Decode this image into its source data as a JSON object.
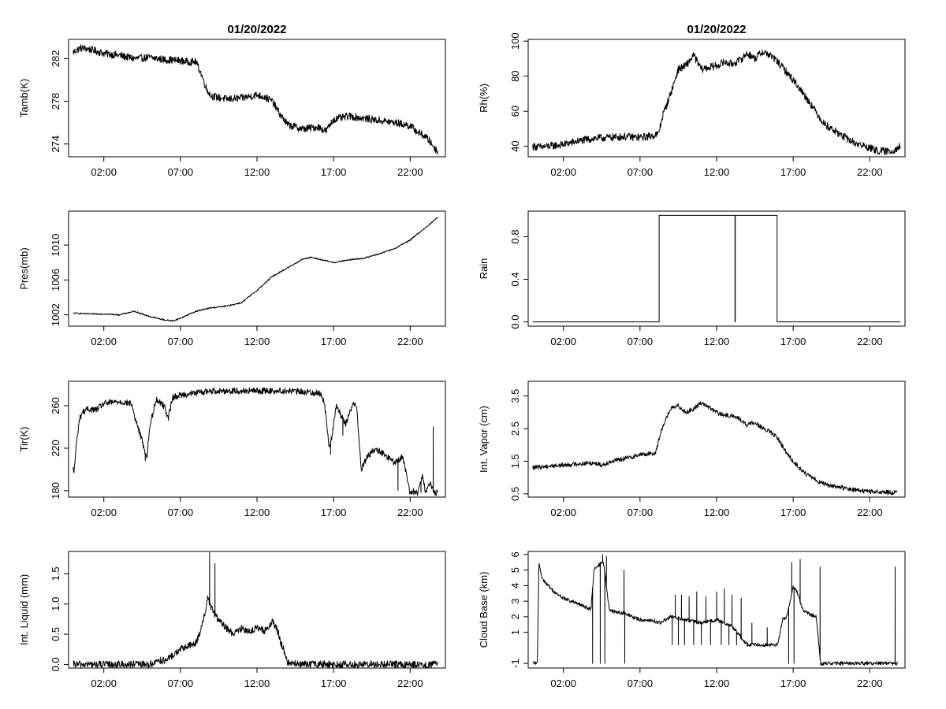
{
  "chart_data": [
    {
      "id": "tamb",
      "type": "line",
      "title": "01/20/2022",
      "xlabel": "",
      "ylabel": "Tamb(K)",
      "xlim": [
        -0.3,
        24.3
      ],
      "ylim": [
        272.8,
        283.8
      ],
      "yticks": [
        "274",
        "278",
        "282"
      ],
      "ytick_values": [
        274,
        278,
        282
      ],
      "xticks": [
        "02:00",
        "07:00",
        "12:00",
        "17:00",
        "22:00"
      ],
      "xtick_values": [
        2,
        7,
        12,
        17,
        22
      ],
      "x": [
        0,
        0.5,
        1,
        1.5,
        2,
        3,
        4,
        5,
        6,
        7,
        7.5,
        8,
        8.3,
        8.7,
        9,
        10,
        11,
        12,
        12.5,
        13,
        13.5,
        14,
        15,
        16,
        16.5,
        17,
        18,
        19,
        20,
        21,
        22,
        22.5,
        23,
        23.3,
        23.6,
        23.8
      ],
      "y": [
        282.6,
        283.0,
        282.9,
        282.7,
        282.5,
        282.3,
        282.0,
        282.1,
        281.9,
        281.8,
        281.7,
        281.7,
        280.8,
        279.2,
        278.5,
        278.2,
        278.3,
        278.6,
        278.4,
        278.0,
        276.8,
        275.8,
        275.4,
        275.6,
        275.2,
        276.3,
        276.6,
        276.4,
        276.2,
        276.0,
        275.7,
        275.1,
        274.7,
        274.2,
        273.6,
        273.3
      ],
      "noise": 0.35
    },
    {
      "id": "rh",
      "type": "line",
      "title": "01/20/2022",
      "xlabel": "",
      "ylabel": "Rh(%)",
      "xlim": [
        -0.3,
        24.3
      ],
      "ylim": [
        34,
        101
      ],
      "yticks": [
        "40",
        "60",
        "80",
        "100"
      ],
      "ytick_values": [
        40,
        60,
        80,
        100
      ],
      "xticks": [
        "02:00",
        "07:00",
        "12:00",
        "17:00",
        "22:00"
      ],
      "xtick_values": [
        2,
        7,
        12,
        17,
        22
      ],
      "x": [
        0,
        0.5,
        1,
        1.5,
        2,
        3,
        4,
        5,
        6,
        7,
        7.8,
        8.2,
        8.5,
        9,
        9.5,
        10,
        10.5,
        11,
        12,
        12.5,
        13,
        13.5,
        14,
        14.5,
        15,
        15.5,
        16,
        16.5,
        17,
        18,
        19,
        20,
        21,
        22,
        22.5,
        23,
        23.5,
        24
      ],
      "y": [
        40,
        39.5,
        40,
        40.5,
        41,
        43,
        44.5,
        45,
        45.5,
        45,
        46,
        47,
        58,
        70,
        84,
        86,
        92,
        84,
        86,
        88,
        87,
        89,
        93,
        90,
        94,
        92,
        88,
        83,
        78,
        66,
        53,
        47,
        42,
        39,
        37.5,
        37,
        37.5,
        40
      ],
      "noise": 2.2
    },
    {
      "id": "pres",
      "type": "line",
      "title": "",
      "xlabel": "",
      "ylabel": "Pres(mb)",
      "xlim": [
        -0.3,
        24.3
      ],
      "ylim": [
        1000.7,
        1013.9
      ],
      "yticks": [
        "1002",
        "1006",
        "1010"
      ],
      "ytick_values": [
        1002,
        1006,
        1010
      ],
      "xticks": [
        "02:00",
        "07:00",
        "12:00",
        "17:00",
        "22:00"
      ],
      "xtick_values": [
        2,
        7,
        12,
        17,
        22
      ],
      "x": [
        0,
        1,
        2,
        3,
        4,
        5,
        6,
        6.5,
        7,
        8,
        9,
        10,
        11,
        12,
        13,
        14,
        15,
        15.5,
        16,
        17,
        18,
        19,
        20,
        21,
        22,
        23,
        23.8
      ],
      "y": [
        1002.2,
        1002.1,
        1002.1,
        1002.0,
        1002.4,
        1001.8,
        1001.4,
        1001.3,
        1001.6,
        1002.4,
        1002.8,
        1003.0,
        1003.4,
        1004.8,
        1006.4,
        1007.4,
        1008.4,
        1008.6,
        1008.4,
        1008.0,
        1008.3,
        1008.5,
        1009.0,
        1009.6,
        1010.6,
        1012.0,
        1013.2
      ],
      "noise": 0.08
    },
    {
      "id": "rain",
      "type": "line",
      "title": "",
      "xlabel": "",
      "ylabel": "Rain",
      "xlim": [
        -0.3,
        24.3
      ],
      "ylim": [
        -0.04,
        1.04
      ],
      "yticks": [
        "0.0",
        "0.4",
        "0.8"
      ],
      "ytick_values": [
        0,
        0.4,
        0.8
      ],
      "xticks": [
        "02:00",
        "07:00",
        "12:00",
        "17:00",
        "22:00"
      ],
      "xtick_values": [
        2,
        7,
        12,
        17,
        22
      ],
      "x": [
        0,
        8.25,
        8.25,
        13.2,
        13.2,
        13.22,
        13.22,
        15.95,
        15.95,
        24
      ],
      "y": [
        0,
        0,
        1,
        1,
        0,
        0,
        1,
        1,
        0,
        0
      ],
      "noise": 0
    },
    {
      "id": "tir",
      "type": "line",
      "title": "",
      "xlabel": "",
      "ylabel": "Tir(K)",
      "xlim": [
        -0.3,
        24.3
      ],
      "ylim": [
        174,
        283
      ],
      "yticks": [
        "180",
        "220",
        "260"
      ],
      "ytick_values": [
        180,
        220,
        260
      ],
      "xticks": [
        "02:00",
        "07:00",
        "12:00",
        "17:00",
        "22:00"
      ],
      "xtick_values": [
        2,
        7,
        12,
        17,
        22
      ],
      "x": [
        0,
        0.05,
        0.2,
        0.4,
        0.6,
        1,
        1.5,
        2,
        3,
        3.8,
        4.1,
        4.4,
        4.6,
        4.8,
        5,
        5.4,
        5.8,
        6,
        6.2,
        6.5,
        7,
        8,
        9,
        10,
        11,
        12,
        13,
        14,
        15,
        16,
        16.3,
        16.5,
        16.7,
        16.9,
        17.2,
        17.5,
        17.8,
        18.2,
        18.5,
        18.8,
        19.2,
        19.6,
        20,
        20.5,
        21,
        21.5,
        22,
        22.2,
        22.5,
        22.8,
        23,
        23.3,
        23.6,
        23.8
      ],
      "y": [
        200,
        197,
        222,
        247,
        254,
        257,
        256,
        262,
        264,
        262,
        245,
        232,
        222,
        210,
        240,
        266,
        262,
        258,
        248,
        268,
        270,
        272,
        274,
        274,
        274,
        274,
        274,
        274,
        273,
        272,
        268,
        252,
        222,
        232,
        262,
        250,
        243,
        260,
        262,
        200,
        212,
        218,
        217,
        212,
        206,
        212,
        178,
        179,
        178,
        196,
        178,
        186,
        178,
        178
      ],
      "noise": 3,
      "spikes": [
        [
          4.7,
          208
        ],
        [
          16.8,
          214
        ],
        [
          17.6,
          232
        ],
        [
          21.2,
          180
        ],
        [
          22.7,
          178
        ],
        [
          23.5,
          240
        ]
      ]
    },
    {
      "id": "vapor",
      "type": "line",
      "title": "",
      "xlabel": "",
      "ylabel": "Int. Vapor (cm)",
      "xlim": [
        -0.3,
        24.3
      ],
      "ylim": [
        0.4,
        3.95
      ],
      "yticks": [
        "0.5",
        "1.5",
        "2.5",
        "3.5"
      ],
      "ytick_values": [
        0.5,
        1.5,
        2.5,
        3.5
      ],
      "xticks": [
        "02:00",
        "07:00",
        "12:00",
        "17:00",
        "22:00"
      ],
      "xtick_values": [
        2,
        7,
        12,
        17,
        22
      ],
      "x": [
        0,
        1,
        2,
        3,
        4,
        4.5,
        5,
        6,
        7,
        7.5,
        8,
        8.2,
        8.5,
        9,
        9.5,
        10,
        10.5,
        11,
        12,
        12.5,
        13,
        13.5,
        14,
        14.5,
        15,
        15.5,
        16,
        16.5,
        17,
        17.5,
        18,
        19,
        20,
        21,
        22,
        23,
        23.8
      ],
      "y": [
        1.3,
        1.35,
        1.38,
        1.42,
        1.45,
        1.38,
        1.48,
        1.58,
        1.7,
        1.72,
        1.75,
        2.1,
        2.6,
        3.1,
        3.2,
        3.0,
        3.1,
        3.3,
        3.0,
        2.9,
        2.9,
        2.8,
        2.6,
        2.7,
        2.5,
        2.4,
        2.2,
        1.8,
        1.5,
        1.25,
        1.05,
        0.8,
        0.7,
        0.62,
        0.57,
        0.55,
        0.53
      ],
      "noise": 0.07
    },
    {
      "id": "liquid",
      "type": "line",
      "title": "",
      "xlabel": "",
      "ylabel": "Int. Liquid (mm)",
      "xlim": [
        -0.3,
        24.3
      ],
      "ylim": [
        -0.06,
        1.87
      ],
      "yticks": [
        "0.0",
        "0.5",
        "1.0",
        "1.5"
      ],
      "ytick_values": [
        0,
        0.5,
        1.0,
        1.5
      ],
      "xticks": [
        "02:00",
        "07:00",
        "12:00",
        "17:00",
        "22:00"
      ],
      "xtick_values": [
        2,
        7,
        12,
        17,
        22
      ],
      "x": [
        0,
        1,
        2,
        3,
        4,
        5,
        5.3,
        5.5,
        6,
        6.5,
        7,
        7.5,
        8,
        8.3,
        8.6,
        8.8,
        9,
        9.3,
        9.6,
        10,
        10.5,
        11,
        11.5,
        12,
        12.5,
        13,
        13.3,
        13.5,
        13.8,
        14,
        14.5,
        15,
        16,
        17,
        18,
        19,
        20,
        21,
        22,
        23,
        23.8
      ],
      "y": [
        0,
        0,
        0,
        0,
        0,
        0,
        0.02,
        0.08,
        0.05,
        0.15,
        0.25,
        0.3,
        0.35,
        0.55,
        0.85,
        1.1,
        0.95,
        0.8,
        0.7,
        0.6,
        0.5,
        0.6,
        0.55,
        0.6,
        0.55,
        0.7,
        0.6,
        0.4,
        0.2,
        0.03,
        0.01,
        0,
        0,
        0,
        0,
        0,
        0,
        0,
        0,
        0,
        0
      ],
      "noise": 0.06,
      "spikes": [
        [
          8.9,
          1.85
        ],
        [
          9.25,
          1.67
        ]
      ]
    },
    {
      "id": "cloudbase",
      "type": "line",
      "title": "",
      "xlabel": "",
      "ylabel": "Cloud Base (km)",
      "xlim": [
        -0.3,
        24.3
      ],
      "ylim": [
        -1.3,
        6.2
      ],
      "yticks": [
        "-1",
        "1",
        "2",
        "3",
        "4",
        "5",
        "6"
      ],
      "ytick_values": [
        -1,
        1,
        2,
        3,
        4,
        5,
        6
      ],
      "xticks": [
        "02:00",
        "07:00",
        "12:00",
        "17:00",
        "22:00"
      ],
      "xtick_values": [
        2,
        7,
        12,
        17,
        22
      ],
      "x": [
        0,
        0.3,
        0.4,
        0.6,
        1,
        1.5,
        2,
        2.5,
        3,
        3.5,
        3.8,
        4,
        4.3,
        4.6,
        5,
        5.5,
        6,
        6.5,
        7,
        7.5,
        8,
        8.3,
        9,
        10,
        11,
        12,
        13,
        14,
        15,
        16,
        16.3,
        16.6,
        17,
        17.3,
        17.6,
        18,
        18.5,
        18.8,
        19,
        20,
        21,
        22,
        23,
        23.8
      ],
      "y": [
        -1,
        -1,
        5.5,
        4.5,
        4.0,
        3.5,
        3.2,
        3.0,
        2.8,
        2.6,
        2.5,
        5.0,
        5.3,
        5.6,
        2.4,
        2.3,
        2.2,
        2.0,
        1.8,
        1.8,
        1.7,
        1.6,
        2.0,
        1.8,
        1.6,
        1.8,
        1.4,
        0.2,
        0.2,
        0.2,
        1.8,
        2.0,
        4.0,
        3.5,
        2.5,
        2.2,
        2.0,
        -1,
        -1,
        -1,
        -1,
        -1,
        -1,
        -1
      ],
      "noise": 0.12,
      "spikes": [
        [
          3.9,
          -1
        ],
        [
          4.05,
          5.2
        ],
        [
          4.4,
          -1
        ],
        [
          4.55,
          6.0
        ],
        [
          4.7,
          -1
        ],
        [
          4.8,
          5.9
        ],
        [
          5.95,
          5.0
        ],
        [
          6.0,
          -1
        ],
        [
          9.1,
          0.2
        ],
        [
          9.3,
          3.4
        ],
        [
          9.5,
          0.2
        ],
        [
          9.7,
          3.4
        ],
        [
          9.9,
          0.2
        ],
        [
          10.2,
          3.3
        ],
        [
          10.5,
          0.2
        ],
        [
          10.7,
          3.6
        ],
        [
          11.0,
          0.2
        ],
        [
          11.3,
          3.3
        ],
        [
          11.6,
          0.2
        ],
        [
          12.0,
          3.6
        ],
        [
          12.3,
          0.2
        ],
        [
          12.5,
          3.8
        ],
        [
          12.8,
          0.2
        ],
        [
          13.0,
          3.4
        ],
        [
          13.3,
          0.2
        ],
        [
          13.6,
          3.2
        ],
        [
          14.0,
          0.2
        ],
        [
          14.3,
          1.6
        ],
        [
          15.3,
          1.3
        ],
        [
          16.7,
          -1
        ],
        [
          16.9,
          5.5
        ],
        [
          17.05,
          -1
        ],
        [
          17.45,
          5.7
        ],
        [
          18.75,
          5.2
        ],
        [
          23.65,
          5.2
        ],
        [
          23.7,
          -1
        ]
      ]
    }
  ]
}
